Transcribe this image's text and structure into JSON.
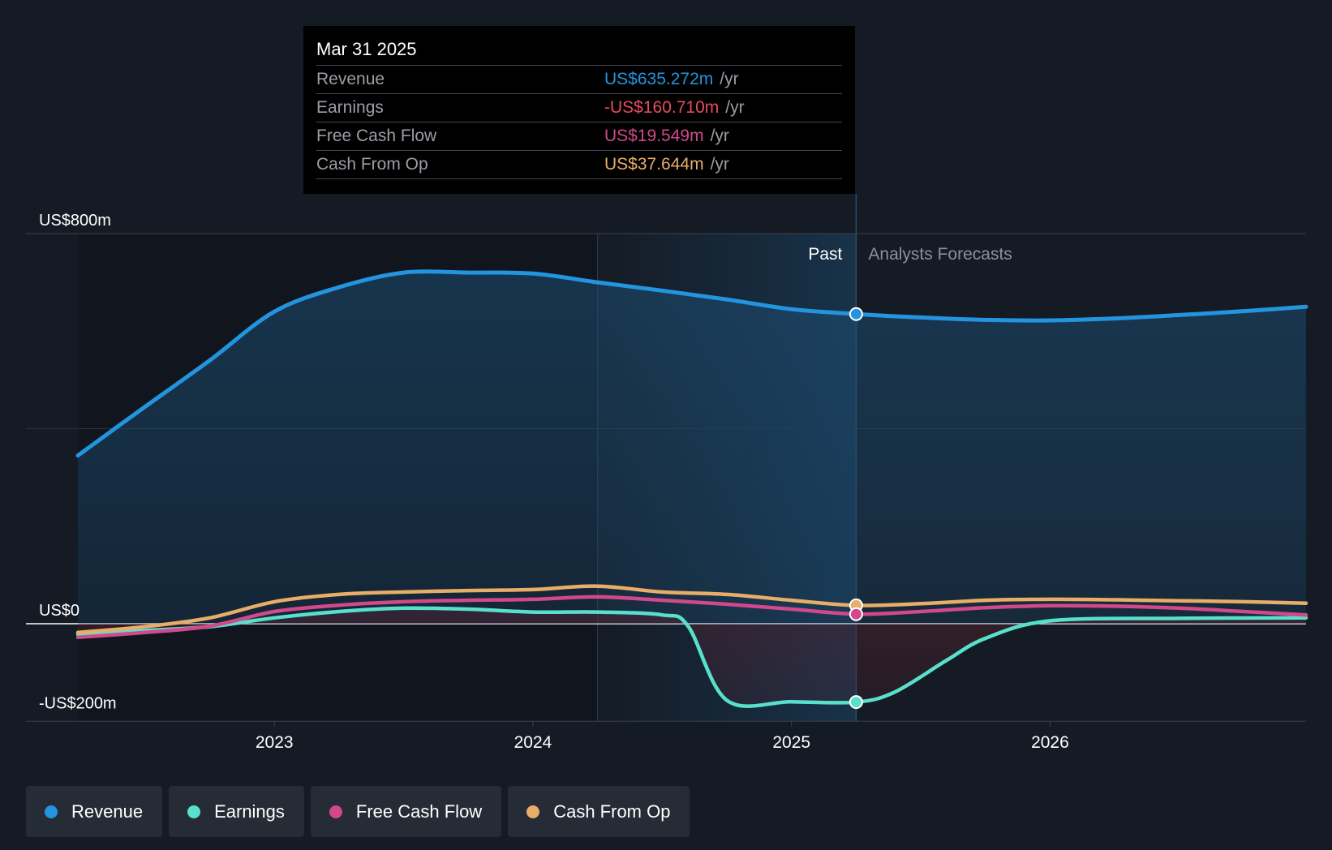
{
  "tooltip": {
    "date": "Mar 31 2025",
    "rows": [
      {
        "label": "Revenue",
        "value": "US$635.272m",
        "unit": "/yr",
        "color": "#2394df"
      },
      {
        "label": "Earnings",
        "value": "-US$160.710m",
        "unit": "/yr",
        "color": "#e64c5c"
      },
      {
        "label": "Free Cash Flow",
        "value": "US$19.549m",
        "unit": "/yr",
        "color": "#d1498a"
      },
      {
        "label": "Cash From Op",
        "value": "US$37.644m",
        "unit": "/yr",
        "color": "#e8ad68"
      }
    ]
  },
  "legend": [
    {
      "label": "Revenue",
      "color": "#2394df"
    },
    {
      "label": "Earnings",
      "color": "#59e0cc"
    },
    {
      "label": "Free Cash Flow",
      "color": "#d1498a"
    },
    {
      "label": "Cash From Op",
      "color": "#e8ad68"
    }
  ],
  "chart_data": {
    "type": "line",
    "x_axis": {
      "ticks": [
        "2023",
        "2024",
        "2025",
        "2026"
      ],
      "range": [
        2022.24,
        2026.99
      ]
    },
    "y_axis": {
      "labels": [
        "US$800m",
        "US$0",
        "-US$200m"
      ],
      "range": [
        -200,
        800
      ]
    },
    "past_label": "Past",
    "forecast_label": "Analysts Forecasts",
    "divider_x": 2025.25,
    "highlight_start_x": 2024.25,
    "grid": true,
    "series": [
      {
        "name": "Revenue",
        "color": "#2394df",
        "points": [
          [
            2022.24,
            345
          ],
          [
            2022.5,
            445
          ],
          [
            2022.75,
            540
          ],
          [
            2023.0,
            640
          ],
          [
            2023.25,
            690
          ],
          [
            2023.5,
            720
          ],
          [
            2023.75,
            720
          ],
          [
            2024.0,
            718
          ],
          [
            2024.25,
            700
          ],
          [
            2024.5,
            683
          ],
          [
            2024.75,
            665
          ],
          [
            2025.0,
            645
          ],
          [
            2025.25,
            635
          ],
          [
            2025.5,
            628
          ],
          [
            2025.75,
            623
          ],
          [
            2026.0,
            622
          ],
          [
            2026.25,
            626
          ],
          [
            2026.5,
            633
          ],
          [
            2026.75,
            641
          ],
          [
            2026.99,
            650
          ]
        ]
      },
      {
        "name": "Earnings",
        "color": "#59e0cc",
        "points": [
          [
            2022.24,
            -22
          ],
          [
            2022.5,
            -14
          ],
          [
            2022.75,
            -6
          ],
          [
            2023.0,
            12
          ],
          [
            2023.25,
            25
          ],
          [
            2023.5,
            32
          ],
          [
            2023.75,
            30
          ],
          [
            2024.0,
            24
          ],
          [
            2024.25,
            24
          ],
          [
            2024.5,
            18
          ],
          [
            2024.6,
            -5
          ],
          [
            2024.75,
            -157
          ],
          [
            2025.0,
            -160
          ],
          [
            2025.25,
            -160.71
          ],
          [
            2025.4,
            -140
          ],
          [
            2025.6,
            -75
          ],
          [
            2025.75,
            -30
          ],
          [
            2026.0,
            6
          ],
          [
            2026.5,
            11
          ],
          [
            2026.99,
            12
          ]
        ]
      },
      {
        "name": "Free Cash Flow",
        "color": "#d1498a",
        "points": [
          [
            2022.24,
            -28
          ],
          [
            2022.5,
            -18
          ],
          [
            2022.75,
            -5
          ],
          [
            2023.0,
            25
          ],
          [
            2023.25,
            38
          ],
          [
            2023.5,
            45
          ],
          [
            2023.75,
            48
          ],
          [
            2024.0,
            50
          ],
          [
            2024.25,
            55
          ],
          [
            2024.5,
            48
          ],
          [
            2024.75,
            40
          ],
          [
            2025.0,
            30
          ],
          [
            2025.25,
            19.549
          ],
          [
            2025.5,
            25
          ],
          [
            2025.75,
            33
          ],
          [
            2026.0,
            37
          ],
          [
            2026.25,
            36
          ],
          [
            2026.5,
            32
          ],
          [
            2026.75,
            25
          ],
          [
            2026.99,
            18
          ]
        ]
      },
      {
        "name": "Cash From Op",
        "color": "#e8ad68",
        "points": [
          [
            2022.24,
            -18
          ],
          [
            2022.5,
            -6
          ],
          [
            2022.75,
            12
          ],
          [
            2023.0,
            45
          ],
          [
            2023.25,
            60
          ],
          [
            2023.5,
            65
          ],
          [
            2023.75,
            68
          ],
          [
            2024.0,
            70
          ],
          [
            2024.25,
            77
          ],
          [
            2024.5,
            65
          ],
          [
            2024.75,
            60
          ],
          [
            2025.0,
            48
          ],
          [
            2025.25,
            37.644
          ],
          [
            2025.5,
            41
          ],
          [
            2025.75,
            48
          ],
          [
            2026.0,
            50
          ],
          [
            2026.25,
            49
          ],
          [
            2026.5,
            47
          ],
          [
            2026.75,
            45
          ],
          [
            2026.99,
            42
          ]
        ]
      }
    ]
  }
}
